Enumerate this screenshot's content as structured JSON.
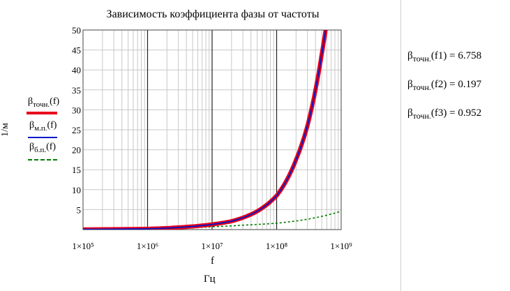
{
  "chart_data": {
    "type": "line",
    "title": "Зависимость коэффициента фазы от частоты",
    "ylabel": "1/м",
    "xlabel": "f",
    "x_unit": "Гц",
    "xscale": "log",
    "xlim": [
      100000,
      1000000000
    ],
    "ylim": [
      0,
      50
    ],
    "yticks": [
      5,
      10,
      15,
      20,
      25,
      30,
      35,
      40,
      45,
      50
    ],
    "xtick_labels": [
      "1×10⁵",
      "1×10⁶",
      "1×10⁷",
      "1×10⁸",
      "1×10⁹"
    ],
    "grid": true,
    "legend_position": "left",
    "series": [
      {
        "name": "βточн.(f)",
        "color": "#e8001c",
        "x": [
          100000,
          1000000,
          3000000,
          10000000,
          20000000,
          50000000,
          100000000,
          150000000,
          200000000,
          300000000,
          400000000,
          500000000,
          600000000
        ],
        "y": [
          0.05,
          0.2,
          0.55,
          1.3,
          2.1,
          4.6,
          8.5,
          13,
          17.5,
          26,
          35,
          44,
          52
        ]
      },
      {
        "name": "βм.п.(f)",
        "color": "#0018c8",
        "x": [
          100000,
          1000000,
          3000000,
          10000000,
          20000000,
          50000000,
          100000000,
          150000000,
          200000000,
          300000000,
          400000000,
          500000000,
          600000000
        ],
        "y": [
          0.05,
          0.2,
          0.55,
          1.3,
          2.1,
          4.6,
          8.5,
          13,
          17.5,
          26,
          35,
          44,
          52
        ]
      },
      {
        "name": "βб.п.(f)",
        "color": "#007a00",
        "dashed": true,
        "x": [
          100000,
          1000000,
          10000000,
          30000000,
          100000000,
          300000000,
          1000000000
        ],
        "y": [
          0.15,
          0.3,
          0.7,
          1.1,
          1.6,
          2.6,
          4.6
        ]
      }
    ]
  },
  "legend": [
    {
      "base": "β",
      "sub": "точн.",
      "arg": "(f)",
      "color": "#e8001c"
    },
    {
      "base": "β",
      "sub": "м.п.",
      "arg": "(f)",
      "color": "#0018c8"
    },
    {
      "base": "β",
      "sub": "б.п.",
      "arg": "(f)",
      "color": "#007a00"
    }
  ],
  "results": [
    {
      "base": "β",
      "sub": "точн.",
      "arg": "(f1)",
      "eq": "=",
      "value": "6.758"
    },
    {
      "base": "β",
      "sub": "точн.",
      "arg": "(f2)",
      "eq": "=",
      "value": "0.197"
    },
    {
      "base": "β",
      "sub": "точн.",
      "arg": "(f3)",
      "eq": "=",
      "value": "0.952"
    }
  ]
}
